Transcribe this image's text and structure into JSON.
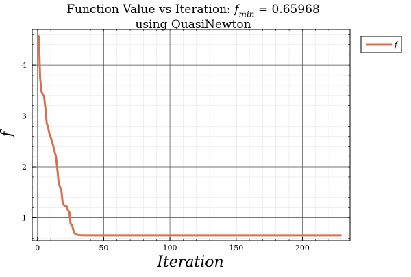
{
  "chart_data": {
    "type": "line",
    "title_line1": "Function Value vs Iteration: f min  =  0.65968",
    "title_line2": "using QuasiNewton",
    "title_prefix": "Function Value vs Iteration: ",
    "title_f": "f",
    "title_subscript": "min",
    "title_value": " =  0.65968",
    "xlabel": "Iteration",
    "ylabel": "f",
    "xlim": [
      -4,
      236
    ],
    "ylim": [
      0.55,
      4.7
    ],
    "x_ticks": [
      0,
      50,
      100,
      150,
      200
    ],
    "y_ticks": [
      1,
      2,
      3,
      4
    ],
    "grid": true,
    "minor_grid": true,
    "legend_position": "outside-top-right",
    "series": [
      {
        "name": "f",
        "color": "#d8704f",
        "x": [
          1,
          2,
          3,
          4,
          5,
          6,
          7,
          8,
          9,
          10,
          11,
          12,
          13,
          14,
          15,
          16,
          17,
          18,
          19,
          20,
          21,
          22,
          23,
          24,
          25,
          26,
          27,
          28,
          29,
          30,
          31,
          32,
          33,
          34,
          35,
          36,
          38,
          40,
          45,
          50,
          60,
          80,
          100,
          150,
          200,
          229
        ],
        "y": [
          4.57,
          3.75,
          3.48,
          3.42,
          3.38,
          3.15,
          2.85,
          2.78,
          2.65,
          2.58,
          2.5,
          2.4,
          2.3,
          2.2,
          1.95,
          1.7,
          1.6,
          1.55,
          1.3,
          1.25,
          1.24,
          1.23,
          1.15,
          1.12,
          0.88,
          0.87,
          0.76,
          0.7,
          0.68,
          0.67,
          0.665,
          0.662,
          0.661,
          0.66,
          0.6598,
          0.6597,
          0.65968,
          0.65968,
          0.65968,
          0.65968,
          0.65968,
          0.65968,
          0.65968,
          0.65968,
          0.65968,
          0.65968
        ]
      }
    ]
  }
}
